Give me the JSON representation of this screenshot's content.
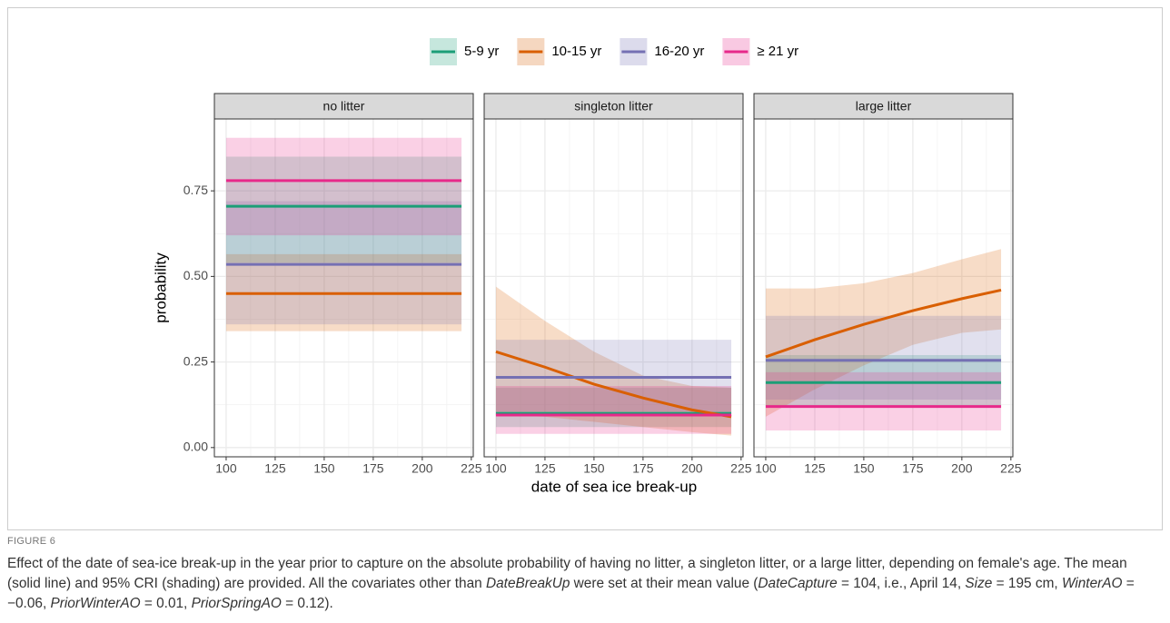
{
  "chart_data": {
    "type": "line",
    "xlabel": "date of sea ice break-up",
    "ylabel": "probability",
    "xlim": [
      94,
      226
    ],
    "ylim": [
      -0.027,
      0.96
    ],
    "xticks": [
      100,
      125,
      150,
      175,
      200,
      225
    ],
    "yticks": [
      {
        "value": 0,
        "label": "0.00"
      },
      {
        "value": 0.25,
        "label": "0.25"
      },
      {
        "value": 0.5,
        "label": "0.50"
      },
      {
        "value": 0.75,
        "label": "0.75"
      }
    ],
    "grid": true,
    "series": [
      {
        "name": "5-9 yr",
        "color": "#1b9e77"
      },
      {
        "name": "10-15 yr",
        "color": "#d95f02"
      },
      {
        "name": "16-20 yr",
        "color": "#7570b3"
      },
      {
        "name": "≥ 21 yr",
        "color": "#e7298a"
      }
    ],
    "facets": [
      {
        "title": "no litter",
        "lines": [
          {
            "x": [
              100,
              220
            ],
            "values": [
              0.705,
              0.705
            ],
            "lower": [
              0.54,
              0.54
            ],
            "upper": [
              0.85,
              0.85
            ]
          },
          {
            "x": [
              100,
              220
            ],
            "values": [
              0.45,
              0.45
            ],
            "lower": [
              0.34,
              0.34
            ],
            "upper": [
              0.565,
              0.565
            ]
          },
          {
            "x": [
              100,
              220
            ],
            "values": [
              0.535,
              0.535
            ],
            "lower": [
              0.36,
              0.36
            ],
            "upper": [
              0.72,
              0.72
            ]
          },
          {
            "x": [
              100,
              220
            ],
            "values": [
              0.78,
              0.78
            ],
            "lower": [
              0.62,
              0.62
            ],
            "upper": [
              0.905,
              0.905
            ]
          }
        ]
      },
      {
        "title": "singleton litter",
        "lines": [
          {
            "x": [
              100,
              220
            ],
            "values": [
              0.1,
              0.1
            ],
            "lower": [
              0.06,
              0.06
            ],
            "upper": [
              0.175,
              0.175
            ]
          },
          {
            "x": [
              100,
              125,
              150,
              175,
              200,
              220
            ],
            "values": [
              0.28,
              0.235,
              0.185,
              0.145,
              0.11,
              0.09
            ],
            "lower": [
              0.095,
              0.09,
              0.075,
              0.06,
              0.045,
              0.035
            ],
            "upper": [
              0.47,
              0.37,
              0.28,
              0.21,
              0.18,
              0.175
            ]
          },
          {
            "x": [
              100,
              220
            ],
            "values": [
              0.205,
              0.205
            ],
            "lower": [
              0.105,
              0.105
            ],
            "upper": [
              0.315,
              0.315
            ]
          },
          {
            "x": [
              100,
              220
            ],
            "values": [
              0.095,
              0.095
            ],
            "lower": [
              0.04,
              0.04
            ],
            "upper": [
              0.18,
              0.18
            ]
          }
        ]
      },
      {
        "title": "large litter",
        "lines": [
          {
            "x": [
              100,
              220
            ],
            "values": [
              0.19,
              0.19
            ],
            "lower": [
              0.12,
              0.12
            ],
            "upper": [
              0.27,
              0.27
            ]
          },
          {
            "x": [
              100,
              125,
              150,
              175,
              200,
              220
            ],
            "values": [
              0.265,
              0.315,
              0.36,
              0.4,
              0.435,
              0.46
            ],
            "lower": [
              0.09,
              0.17,
              0.24,
              0.3,
              0.335,
              0.345
            ],
            "upper": [
              0.465,
              0.465,
              0.48,
              0.51,
              0.55,
              0.58
            ]
          },
          {
            "x": [
              100,
              220
            ],
            "values": [
              0.255,
              0.255
            ],
            "lower": [
              0.14,
              0.14
            ],
            "upper": [
              0.385,
              0.385
            ]
          },
          {
            "x": [
              100,
              220
            ],
            "values": [
              0.12,
              0.12
            ],
            "lower": [
              0.05,
              0.05
            ],
            "upper": [
              0.22,
              0.22
            ]
          }
        ]
      }
    ]
  },
  "caption": {
    "label": "FIGURE 6",
    "parts": [
      "Effect of the date of sea-ice break-up in the year prior to capture on the absolute probability of having no litter, a singleton litter, or a large litter, depending on female's age. The mean (solid line) and 95% CRI (shading) are provided. All the covariates other than ",
      "DateBreakUp",
      " were set at their mean value (",
      "DateCapture",
      " = 104, i.e., April 14, ",
      "Size",
      " = 195 cm, ",
      "WinterAO",
      " = −0.06, ",
      "PriorWinterAO",
      " = 0.01, ",
      "PriorSpringAO",
      " = 0.12)."
    ]
  }
}
